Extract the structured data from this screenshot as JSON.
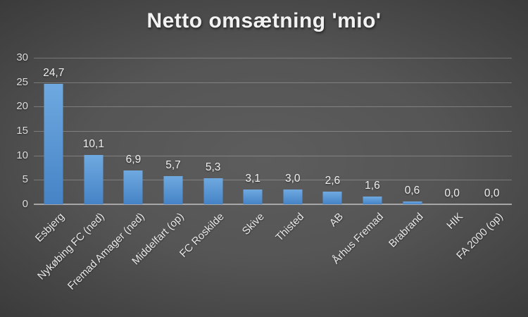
{
  "title": "Netto omsætning 'mio'",
  "colors": {
    "background_center": "#5d5d5d",
    "background_edge": "#252525",
    "bar_top": "#6fa9e0",
    "bar_bottom": "#4583c6",
    "gridline": "rgba(255,255,255,0.25)",
    "axis_line": "#a6a6a6",
    "text": "#f0f0f0",
    "tick_text": "#dcdcdc"
  },
  "chart_data": {
    "type": "bar",
    "title": "Netto omsætning 'mio'",
    "categories": [
      "Esbjerg",
      "Nykøbing FC (ned)",
      "Fremad Amager (ned)",
      "Middelfart (op)",
      "FC Roskilde",
      "Skive",
      "Thisted",
      "AB",
      "Århus Fremad",
      "Brabrand",
      "HIK",
      "FA 2000 (op)"
    ],
    "values": [
      24.7,
      10.1,
      6.9,
      5.7,
      5.3,
      3.1,
      3.0,
      2.6,
      1.6,
      0.6,
      0.0,
      0.0
    ],
    "value_labels": [
      "24,7",
      "10,1",
      "6,9",
      "5,7",
      "5,3",
      "3,1",
      "3,0",
      "2,6",
      "1,6",
      "0,6",
      "0,0",
      "0,0"
    ],
    "xlabel": "",
    "ylabel": "",
    "ylim": [
      0,
      30
    ],
    "yticks": [
      0,
      5,
      10,
      15,
      20,
      25,
      30
    ],
    "grid": true,
    "legend": false,
    "decimal_separator": ",",
    "bar_label_position": "above",
    "x_label_rotation_deg": 45
  }
}
